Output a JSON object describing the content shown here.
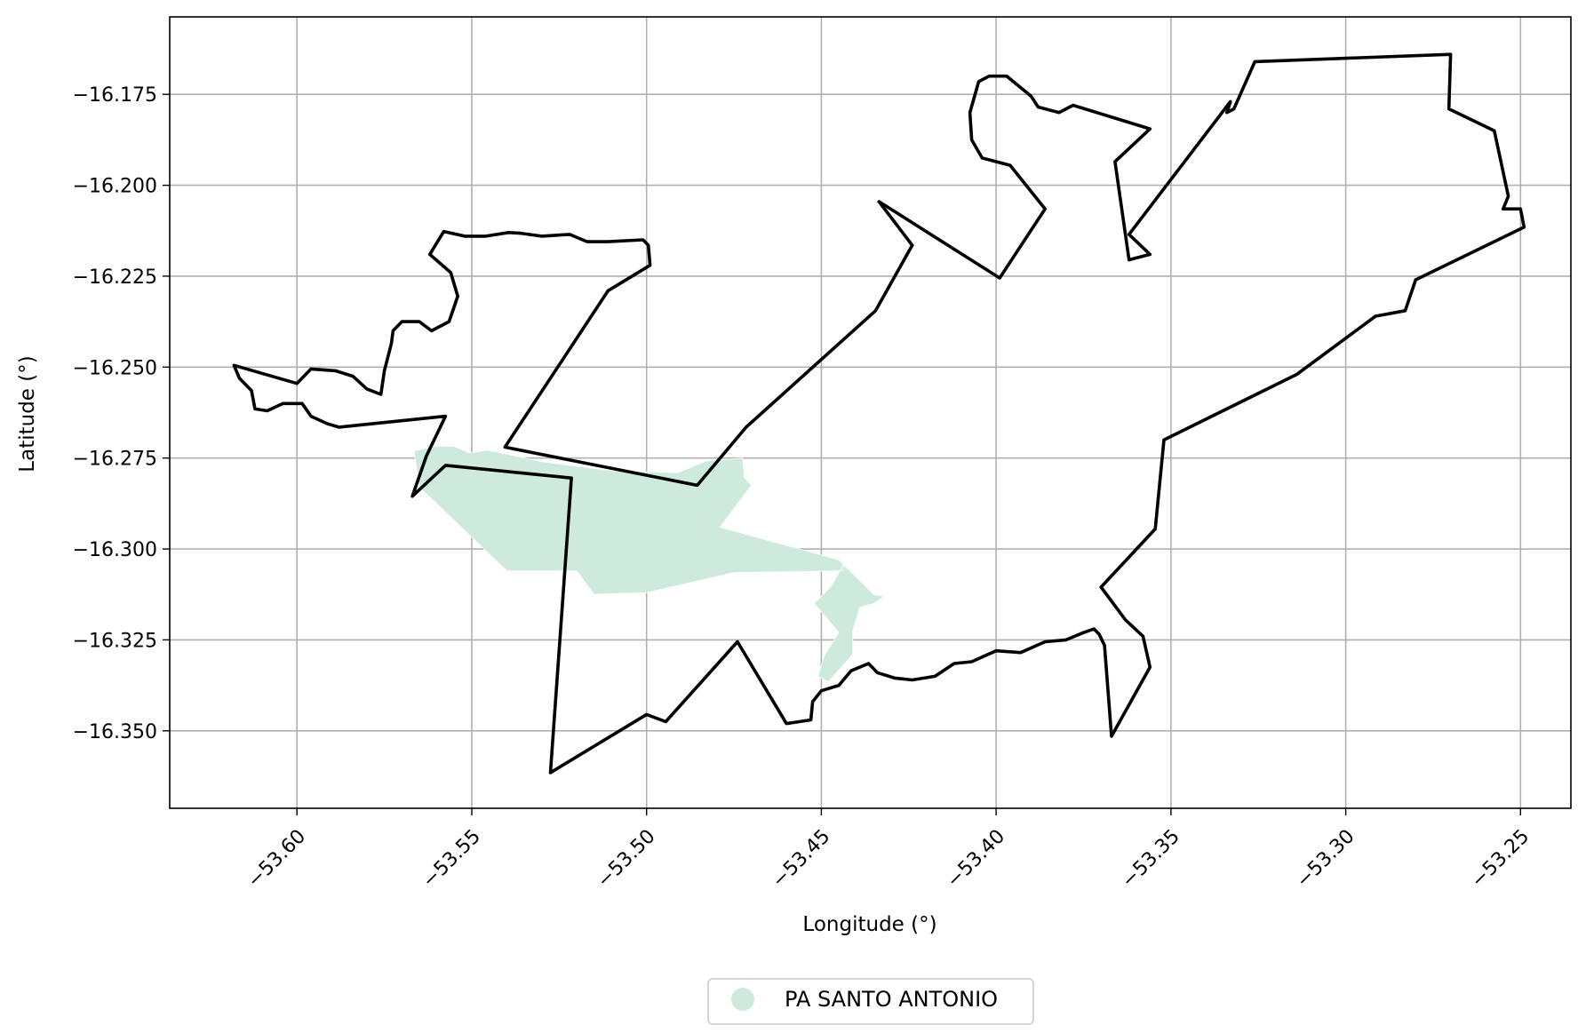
{
  "map": {
    "x_axis_label": "Longitude (°)",
    "y_axis_label": "Latitude (°)",
    "x_ticks": [
      {
        "value": -53.6,
        "label": "−53.60"
      },
      {
        "value": -53.55,
        "label": "−53.55"
      },
      {
        "value": -53.5,
        "label": "−53.50"
      },
      {
        "value": -53.45,
        "label": "−53.45"
      },
      {
        "value": -53.4,
        "label": "−53.40"
      },
      {
        "value": -53.35,
        "label": "−53.35"
      },
      {
        "value": -53.3,
        "label": "−53.30"
      },
      {
        "value": -53.25,
        "label": "−53.25"
      }
    ],
    "y_ticks": [
      {
        "value": -16.175,
        "label": "−16.175"
      },
      {
        "value": -16.2,
        "label": "−16.200"
      },
      {
        "value": -16.225,
        "label": "−16.225"
      },
      {
        "value": -16.25,
        "label": "−16.250"
      },
      {
        "value": -16.275,
        "label": "−16.275"
      },
      {
        "value": -16.3,
        "label": "−16.300"
      },
      {
        "value": -16.325,
        "label": "−16.325"
      },
      {
        "value": -16.35,
        "label": "−16.350"
      }
    ],
    "xlim": [
      -53.6364,
      -53.2356
    ],
    "ylim": [
      -16.3713,
      -16.1537
    ],
    "grid": true,
    "legend": {
      "position": "bottom-center",
      "items": [
        {
          "label": "PA SANTO ANTONIO",
          "color": "#cdeadc"
        }
      ]
    },
    "colors": {
      "boundary": "#000000",
      "area_fill": "#cdeadc",
      "grid": "#b0b0b0"
    }
  },
  "chart_data": {
    "type": "map",
    "title": "",
    "xlabel": "Longitude (°)",
    "ylabel": "Latitude (°)",
    "xlim": [
      -53.6364,
      -53.2356
    ],
    "ylim": [
      -16.3713,
      -16.1537
    ],
    "grid": true,
    "legend_position": "bottom-center",
    "series": [
      {
        "name": "PA SANTO ANTONIO",
        "kind": "filled-polygon",
        "color": "#cdeadc",
        "lonlat": [
          [
            -53.5665,
            -16.273
          ],
          [
            -53.56,
            -16.2717
          ],
          [
            -53.555,
            -16.2718
          ],
          [
            -53.5505,
            -16.2736
          ],
          [
            -53.5455,
            -16.2728
          ],
          [
            -53.53,
            -16.276
          ],
          [
            -53.51,
            -16.2785
          ],
          [
            -53.491,
            -16.279
          ],
          [
            -53.483,
            -16.2758
          ],
          [
            -53.4725,
            -16.275
          ],
          [
            -53.472,
            -16.2805
          ],
          [
            -53.47,
            -16.2825
          ],
          [
            -53.479,
            -16.294
          ],
          [
            -53.445,
            -16.303
          ],
          [
            -53.435,
            -16.3125
          ],
          [
            -53.432,
            -16.313
          ],
          [
            -53.435,
            -16.315
          ],
          [
            -53.439,
            -16.316
          ],
          [
            -53.441,
            -16.3225
          ],
          [
            -53.441,
            -16.329
          ],
          [
            -53.448,
            -16.3365
          ],
          [
            -53.451,
            -16.335
          ],
          [
            -53.449,
            -16.329
          ],
          [
            -53.445,
            -16.323
          ],
          [
            -53.452,
            -16.315
          ],
          [
            -53.447,
            -16.31
          ],
          [
            -53.443,
            -16.303
          ],
          [
            -53.444,
            -16.306
          ],
          [
            -53.475,
            -16.3065
          ],
          [
            -53.5,
            -16.312
          ],
          [
            -53.515,
            -16.3125
          ],
          [
            -53.52,
            -16.306
          ],
          [
            -53.54,
            -16.306
          ],
          [
            -53.565,
            -16.283
          ],
          [
            -53.5665,
            -16.273
          ]
        ]
      },
      {
        "name": "",
        "kind": "boundary",
        "color": "#000000",
        "lonlat": [
          [
            -53.558,
            -16.2127
          ],
          [
            -53.552,
            -16.214
          ],
          [
            -53.546,
            -16.214
          ],
          [
            -53.5395,
            -16.213
          ],
          [
            -53.536,
            -16.2132
          ],
          [
            -53.53,
            -16.214
          ],
          [
            -53.522,
            -16.2135
          ],
          [
            -53.517,
            -16.2155
          ],
          [
            -53.511,
            -16.2155
          ],
          [
            -53.501,
            -16.215
          ],
          [
            -53.4995,
            -16.2165
          ],
          [
            -53.499,
            -16.222
          ],
          [
            -53.511,
            -16.229
          ],
          [
            -53.5405,
            -16.272
          ],
          [
            -53.4855,
            -16.2825
          ],
          [
            -53.4715,
            -16.2665
          ],
          [
            -53.4345,
            -16.2345
          ],
          [
            -53.424,
            -16.2165
          ],
          [
            -53.4335,
            -16.2045
          ],
          [
            -53.399,
            -16.2255
          ],
          [
            -53.386,
            -16.2065
          ],
          [
            -53.396,
            -16.1945
          ],
          [
            -53.404,
            -16.1925
          ],
          [
            -53.407,
            -16.1875
          ],
          [
            -53.4075,
            -16.18
          ],
          [
            -53.405,
            -16.1715
          ],
          [
            -53.402,
            -16.17
          ],
          [
            -53.397,
            -16.17
          ],
          [
            -53.39,
            -16.1755
          ],
          [
            -53.388,
            -16.1785
          ],
          [
            -53.382,
            -16.18
          ],
          [
            -53.378,
            -16.178
          ],
          [
            -53.356,
            -16.1845
          ],
          [
            -53.366,
            -16.1935
          ],
          [
            -53.362,
            -16.2205
          ],
          [
            -53.356,
            -16.219
          ],
          [
            -53.362,
            -16.2135
          ],
          [
            -53.333,
            -16.177
          ],
          [
            -53.334,
            -16.18
          ],
          [
            -53.332,
            -16.179
          ],
          [
            -53.326,
            -16.166
          ],
          [
            -53.27,
            -16.164
          ],
          [
            -53.2705,
            -16.179
          ],
          [
            -53.2575,
            -16.185
          ],
          [
            -53.2535,
            -16.203
          ],
          [
            -53.255,
            -16.2065
          ],
          [
            -53.25,
            -16.2065
          ],
          [
            -53.249,
            -16.2115
          ],
          [
            -53.28,
            -16.226
          ],
          [
            -53.283,
            -16.2345
          ],
          [
            -53.2915,
            -16.236
          ],
          [
            -53.314,
            -16.252
          ],
          [
            -53.352,
            -16.27
          ],
          [
            -53.3545,
            -16.2945
          ],
          [
            -53.37,
            -16.3105
          ],
          [
            -53.363,
            -16.3195
          ],
          [
            -53.358,
            -16.324
          ],
          [
            -53.356,
            -16.3325
          ],
          [
            -53.367,
            -16.3515
          ],
          [
            -53.369,
            -16.3265
          ],
          [
            -53.3705,
            -16.3235
          ],
          [
            -53.372,
            -16.322
          ],
          [
            -53.375,
            -16.323
          ],
          [
            -53.38,
            -16.325
          ],
          [
            -53.386,
            -16.3255
          ],
          [
            -53.393,
            -16.3285
          ],
          [
            -53.4,
            -16.328
          ],
          [
            -53.407,
            -16.331
          ],
          [
            -53.412,
            -16.3315
          ],
          [
            -53.4175,
            -16.335
          ],
          [
            -53.424,
            -16.336
          ],
          [
            -53.429,
            -16.3355
          ],
          [
            -53.434,
            -16.334
          ],
          [
            -53.4365,
            -16.3315
          ],
          [
            -53.4415,
            -16.3335
          ],
          [
            -53.445,
            -16.3375
          ],
          [
            -53.45,
            -16.339
          ],
          [
            -53.4525,
            -16.342
          ],
          [
            -53.453,
            -16.347
          ],
          [
            -53.46,
            -16.348
          ],
          [
            -53.474,
            -16.3255
          ],
          [
            -53.4945,
            -16.3475
          ],
          [
            -53.5,
            -16.3455
          ],
          [
            -53.5275,
            -16.3615
          ],
          [
            -53.5215,
            -16.2805
          ],
          [
            -53.5575,
            -16.277
          ],
          [
            -53.567,
            -16.2855
          ],
          [
            -53.563,
            -16.2745
          ],
          [
            -53.5575,
            -16.2635
          ],
          [
            -53.588,
            -16.2665
          ],
          [
            -53.5915,
            -16.2655
          ],
          [
            -53.596,
            -16.2635
          ],
          [
            -53.5985,
            -16.26
          ],
          [
            -53.604,
            -16.26
          ],
          [
            -53.6085,
            -16.262
          ],
          [
            -53.612,
            -16.2615
          ],
          [
            -53.613,
            -16.2565
          ],
          [
            -53.6165,
            -16.253
          ],
          [
            -53.618,
            -16.2495
          ],
          [
            -53.6,
            -16.2545
          ],
          [
            -53.596,
            -16.2505
          ],
          [
            -53.589,
            -16.251
          ],
          [
            -53.584,
            -16.2525
          ],
          [
            -53.58,
            -16.256
          ],
          [
            -53.576,
            -16.2575
          ],
          [
            -53.575,
            -16.251
          ],
          [
            -53.573,
            -16.2435
          ],
          [
            -53.5725,
            -16.24
          ],
          [
            -53.57,
            -16.2375
          ],
          [
            -53.565,
            -16.2375
          ],
          [
            -53.5615,
            -16.24
          ],
          [
            -53.5565,
            -16.2375
          ],
          [
            -53.554,
            -16.2305
          ],
          [
            -53.556,
            -16.224
          ],
          [
            -53.562,
            -16.219
          ],
          [
            -53.558,
            -16.2127
          ]
        ]
      }
    ]
  }
}
